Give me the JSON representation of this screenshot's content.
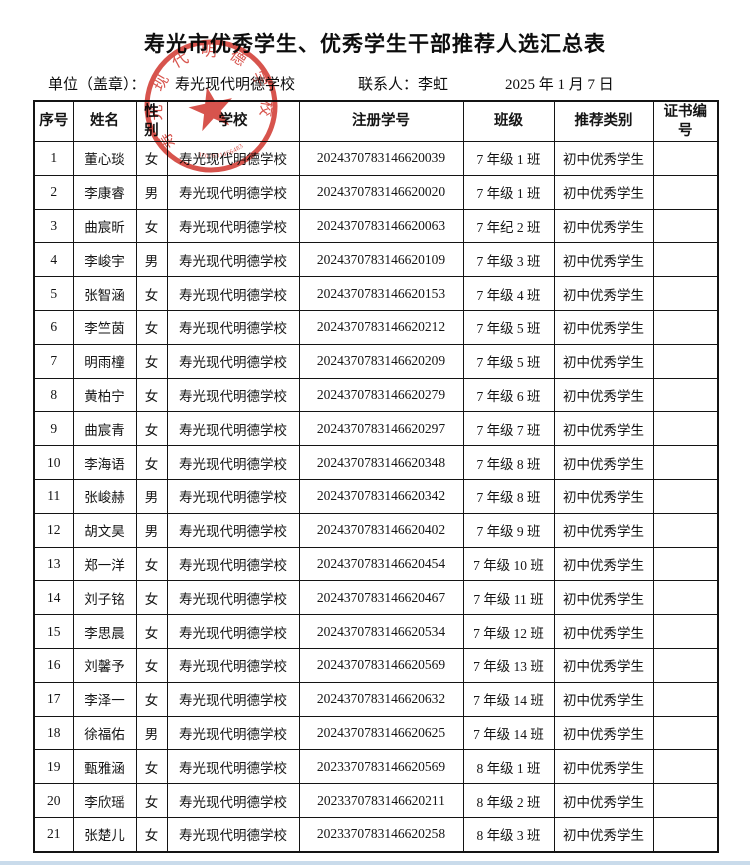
{
  "page": {
    "title": "寿光市优秀学生、优秀学生干部推荐人选汇总表"
  },
  "info": {
    "unit_label": "单位（盖章）：",
    "unit_value": "寿光现代明德学校",
    "contact_label": "联系人：",
    "contact_value": "李虹",
    "date": "2025 年 1 月 7 日"
  },
  "stamp": {
    "ring_text": "寿光现代明德学校",
    "code": "3707831466483",
    "star_icon": "★",
    "color": "#d23c34"
  },
  "table": {
    "headers": [
      "序号",
      "姓名",
      "性\n别",
      "学校",
      "注册学号",
      "班级",
      "推荐类别",
      "证书编\n号"
    ],
    "rows": [
      {
        "no": "1",
        "name": "董心琰",
        "gender": "女",
        "school": "寿光现代明德学校",
        "student_id": "2024370783146620039",
        "class": "7 年级 1 班",
        "category": "初中优秀学生",
        "cert_no": ""
      },
      {
        "no": "2",
        "name": "李康睿",
        "gender": "男",
        "school": "寿光现代明德学校",
        "student_id": "2024370783146620020",
        "class": "7 年级 1 班",
        "category": "初中优秀学生",
        "cert_no": ""
      },
      {
        "no": "3",
        "name": "曲宸昕",
        "gender": "女",
        "school": "寿光现代明德学校",
        "student_id": "2024370783146620063",
        "class": "7 年纪 2 班",
        "category": "初中优秀学生",
        "cert_no": ""
      },
      {
        "no": "4",
        "name": "李峻宇",
        "gender": "男",
        "school": "寿光现代明德学校",
        "student_id": "2024370783146620109",
        "class": "7 年级 3 班",
        "category": "初中优秀学生",
        "cert_no": ""
      },
      {
        "no": "5",
        "name": "张智涵",
        "gender": "女",
        "school": "寿光现代明德学校",
        "student_id": "2024370783146620153",
        "class": "7 年级 4 班",
        "category": "初中优秀学生",
        "cert_no": ""
      },
      {
        "no": "6",
        "name": "李竺茵",
        "gender": "女",
        "school": "寿光现代明德学校",
        "student_id": "2024370783146620212",
        "class": "7 年级 5 班",
        "category": "初中优秀学生",
        "cert_no": ""
      },
      {
        "no": "7",
        "name": "明雨橦",
        "gender": "女",
        "school": "寿光现代明德学校",
        "student_id": "2024370783146620209",
        "class": "7 年级 5 班",
        "category": "初中优秀学生",
        "cert_no": ""
      },
      {
        "no": "8",
        "name": "黄柏宁",
        "gender": "女",
        "school": "寿光现代明德学校",
        "student_id": "2024370783146620279",
        "class": "7 年级 6 班",
        "category": "初中优秀学生",
        "cert_no": ""
      },
      {
        "no": "9",
        "name": "曲宸青",
        "gender": "女",
        "school": "寿光现代明德学校",
        "student_id": "2024370783146620297",
        "class": "7 年级 7 班",
        "category": "初中优秀学生",
        "cert_no": ""
      },
      {
        "no": "10",
        "name": "李海语",
        "gender": "女",
        "school": "寿光现代明德学校",
        "student_id": "2024370783146620348",
        "class": "7 年级 8 班",
        "category": "初中优秀学生",
        "cert_no": ""
      },
      {
        "no": "11",
        "name": "张峻赫",
        "gender": "男",
        "school": "寿光现代明德学校",
        "student_id": "2024370783146620342",
        "class": "7 年级 8 班",
        "category": "初中优秀学生",
        "cert_no": ""
      },
      {
        "no": "12",
        "name": "胡文昊",
        "gender": "男",
        "school": "寿光现代明德学校",
        "student_id": "2024370783146620402",
        "class": "7 年级 9 班",
        "category": "初中优秀学生",
        "cert_no": ""
      },
      {
        "no": "13",
        "name": "郑一洋",
        "gender": "女",
        "school": "寿光现代明德学校",
        "student_id": "2024370783146620454",
        "class": "7 年级 10 班",
        "category": "初中优秀学生",
        "cert_no": ""
      },
      {
        "no": "14",
        "name": "刘子铭",
        "gender": "女",
        "school": "寿光现代明德学校",
        "student_id": "2024370783146620467",
        "class": "7 年级 11 班",
        "category": "初中优秀学生",
        "cert_no": ""
      },
      {
        "no": "15",
        "name": "李思晨",
        "gender": "女",
        "school": "寿光现代明德学校",
        "student_id": "2024370783146620534",
        "class": "7 年级 12 班",
        "category": "初中优秀学生",
        "cert_no": ""
      },
      {
        "no": "16",
        "name": "刘馨予",
        "gender": "女",
        "school": "寿光现代明德学校",
        "student_id": "2024370783146620569",
        "class": "7 年级 13 班",
        "category": "初中优秀学生",
        "cert_no": ""
      },
      {
        "no": "17",
        "name": "李泽一",
        "gender": "女",
        "school": "寿光现代明德学校",
        "student_id": "2024370783146620632",
        "class": "7 年级 14 班",
        "category": "初中优秀学生",
        "cert_no": ""
      },
      {
        "no": "18",
        "name": "徐福佑",
        "gender": "男",
        "school": "寿光现代明德学校",
        "student_id": "2024370783146620625",
        "class": "7 年级 14 班",
        "category": "初中优秀学生",
        "cert_no": ""
      },
      {
        "no": "19",
        "name": "甄雅涵",
        "gender": "女",
        "school": "寿光现代明德学校",
        "student_id": "2023370783146620569",
        "class": "8 年级 1 班",
        "category": "初中优秀学生",
        "cert_no": ""
      },
      {
        "no": "20",
        "name": "李欣瑶",
        "gender": "女",
        "school": "寿光现代明德学校",
        "student_id": "2023370783146620211",
        "class": "8 年级 2 班",
        "category": "初中优秀学生",
        "cert_no": ""
      },
      {
        "no": "21",
        "name": "张楚儿",
        "gender": "女",
        "school": "寿光现代明德学校",
        "student_id": "2023370783146620258",
        "class": "8 年级 3 班",
        "category": "初中优秀学生",
        "cert_no": ""
      }
    ]
  }
}
